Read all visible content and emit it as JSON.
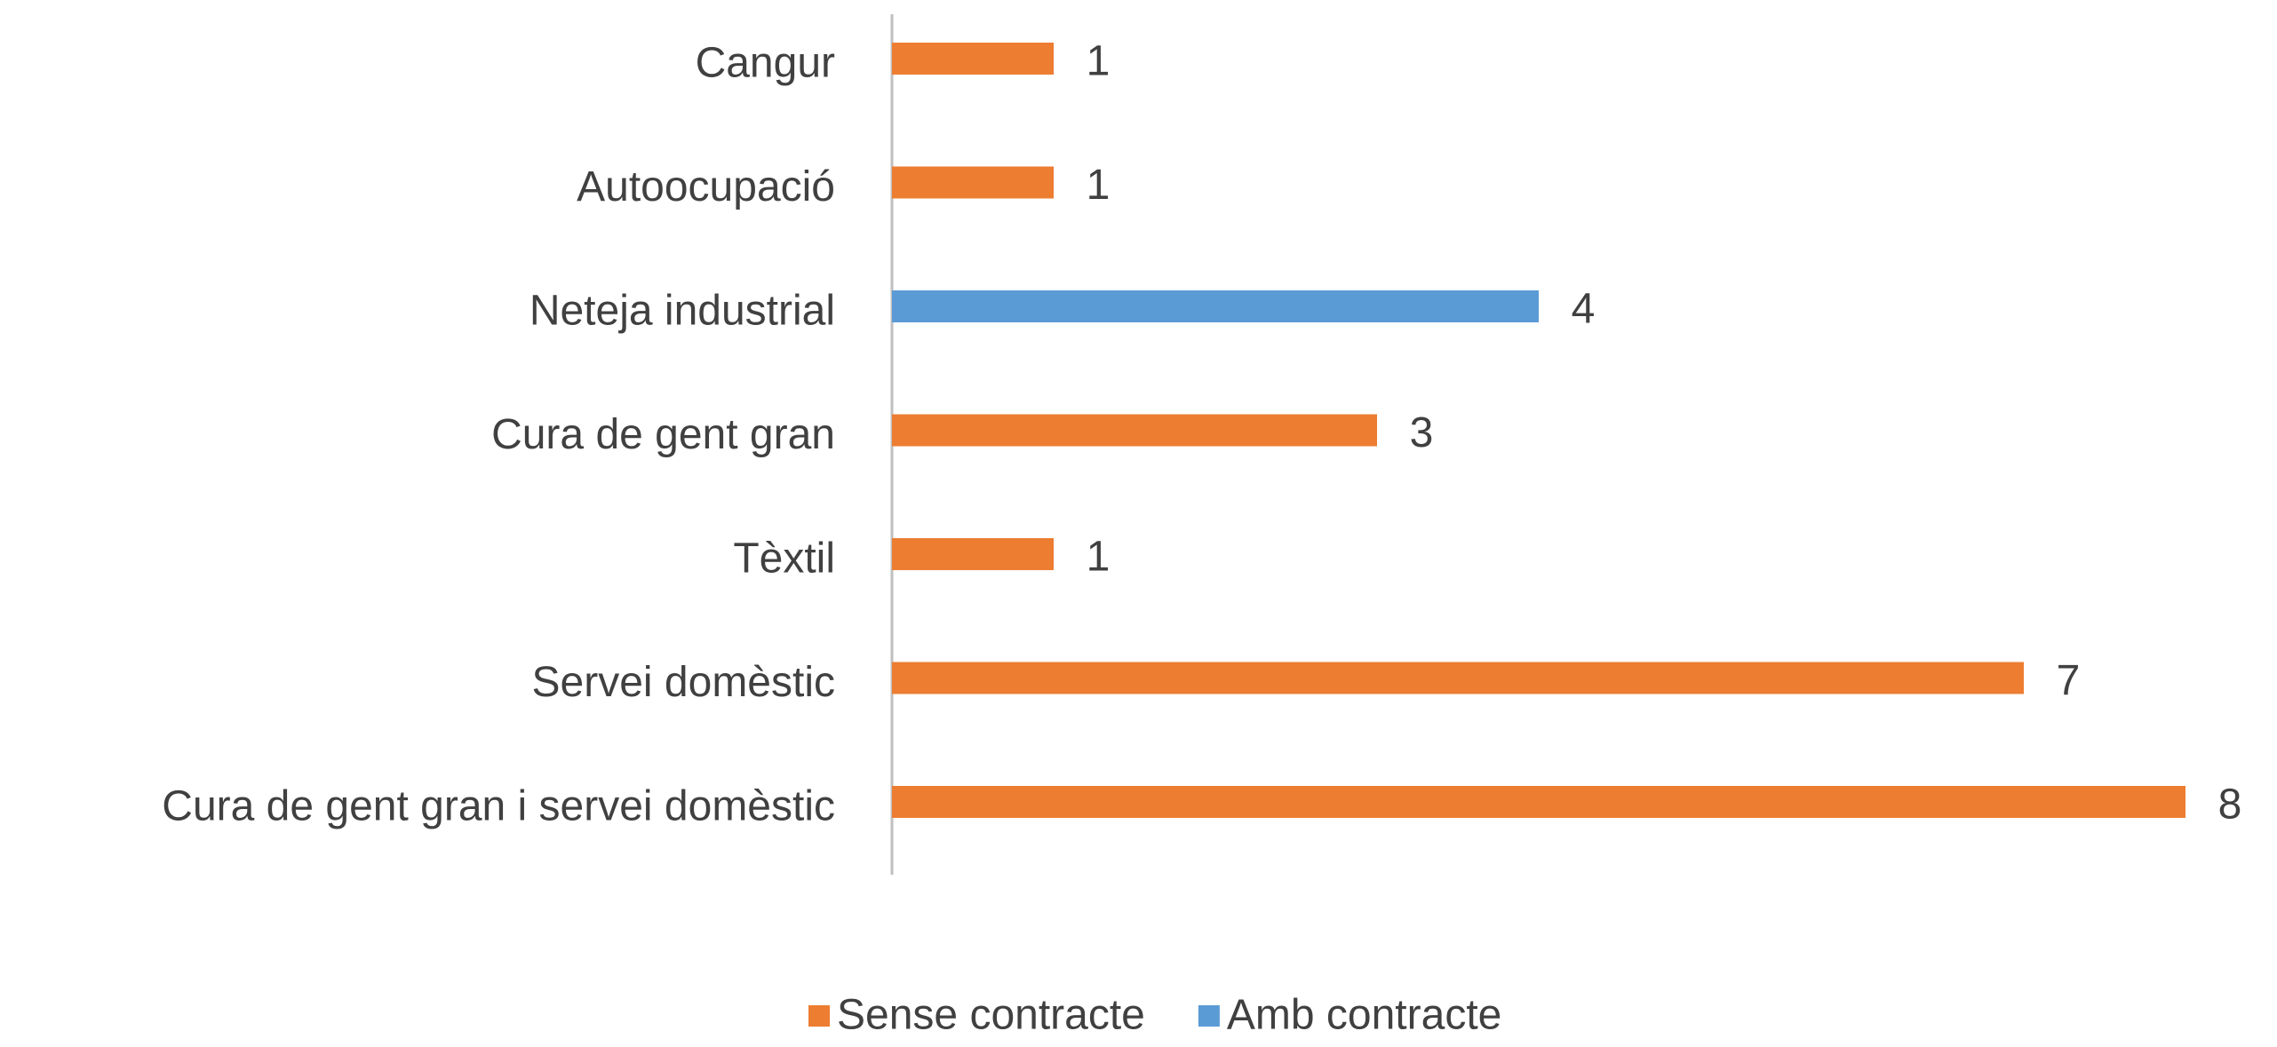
{
  "chart_data": {
    "type": "barh",
    "categories": [
      "Cangur",
      "Autoocupació",
      "Neteja industrial",
      "Cura de gent gran",
      "Tèxtil",
      "Servei domèstic",
      "Cura de gent gran i servei domèstic"
    ],
    "series": [
      {
        "name": "Sense contracte",
        "color": "#ed7d31",
        "values": [
          1,
          1,
          null,
          3,
          1,
          7,
          8
        ]
      },
      {
        "name": "Amb contracte",
        "color": "#5b9bd5",
        "values": [
          null,
          null,
          4,
          null,
          null,
          null,
          null
        ]
      }
    ],
    "xlim": [
      0,
      8
    ],
    "legend": "bottom"
  }
}
